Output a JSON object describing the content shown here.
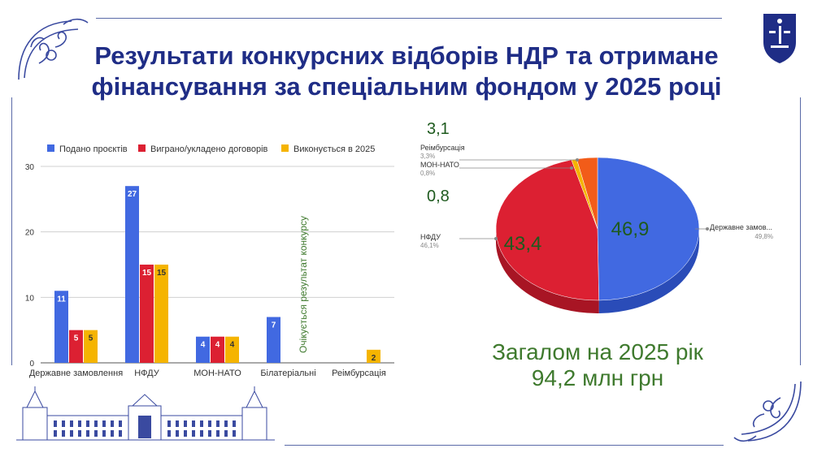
{
  "title_line1": "Результати конкурсних відборів НДР та отримане",
  "title_line2": "фінансування за спеціальним фондом у 2025 році",
  "colors": {
    "title": "#1f2d86",
    "blue": "#4169e1",
    "red": "#dc2032",
    "yellow": "#f5b400",
    "orange": "#f25c19",
    "green": "#3f7a2e",
    "frame": "#5a6aa8"
  },
  "icons": [
    "logo-icon",
    "corner-ornament-icon",
    "building-sketch-icon"
  ],
  "bar_chart": {
    "type": "bar",
    "legend_position": "top",
    "legend": [
      "Подано проєктів",
      "Виграно/укладено договорів",
      "Виконується в 2025"
    ],
    "categories": [
      "Державне замовлення",
      "НФДУ",
      "МОН-НАТО",
      "Білатеріальні",
      "Реімбурсація"
    ],
    "series": [
      {
        "name": "Подано проєктів",
        "values": [
          11,
          27,
          4,
          7,
          null
        ]
      },
      {
        "name": "Виграно/укладено договорів",
        "values": [
          5,
          15,
          4,
          null,
          null
        ]
      },
      {
        "name": "Виконується в 2025",
        "values": [
          5,
          15,
          4,
          null,
          2
        ]
      }
    ],
    "ylim": [
      0,
      30
    ],
    "yticks": [
      0,
      10,
      20,
      30
    ],
    "grid": true,
    "annotation": "Очікується результат конкурсу"
  },
  "pie_chart": {
    "type": "pie",
    "slices": [
      {
        "label": "Державне замов...",
        "percent": "49,8%",
        "value": 46.9,
        "value_label": "46,9"
      },
      {
        "label": "НФДУ",
        "percent": "46,1%",
        "value": 43.4,
        "value_label": "43,4"
      },
      {
        "label": "МОН-НАТО",
        "percent": "0,8%",
        "value": 0.8,
        "value_label": "0,8"
      },
      {
        "label": "Реімбурсація",
        "percent": "3,3%",
        "value": 3.1,
        "value_label": "3,1"
      }
    ]
  },
  "total_line1": "Загалом на 2025 рік",
  "total_line2": "94,2 млн  грн"
}
